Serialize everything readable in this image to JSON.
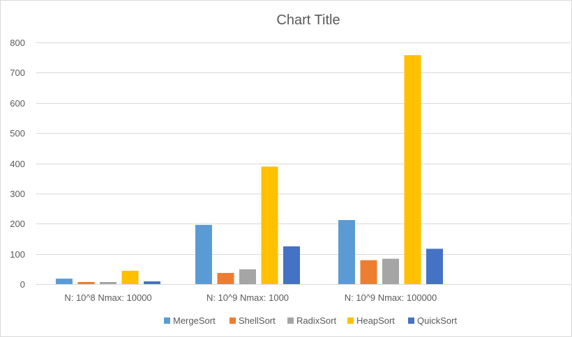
{
  "chart_data": {
    "type": "bar",
    "title": "Chart Title",
    "xlabel": "",
    "ylabel": "",
    "ylim": [
      0,
      800
    ],
    "yticks": [
      0,
      100,
      200,
      300,
      400,
      500,
      600,
      700,
      800
    ],
    "grid": true,
    "legend_position": "bottom",
    "categories": [
      "N: 10^8 Nmax: 10000",
      "N: 10^9 Nmax: 1000",
      "N: 10^9 Nmax: 100000"
    ],
    "series": [
      {
        "name": "MergeSort",
        "color": "#5b9bd5",
        "values": [
          18,
          196,
          212
        ]
      },
      {
        "name": "ShellSort",
        "color": "#ed7d31",
        "values": [
          7,
          37,
          79
        ]
      },
      {
        "name": "RadixSort",
        "color": "#a5a5a5",
        "values": [
          7,
          49,
          84
        ]
      },
      {
        "name": "HeapSort",
        "color": "#ffc000",
        "values": [
          44,
          389,
          758
        ]
      },
      {
        "name": "QuickSort",
        "color": "#4472c4",
        "values": [
          9,
          125,
          117
        ]
      }
    ]
  }
}
